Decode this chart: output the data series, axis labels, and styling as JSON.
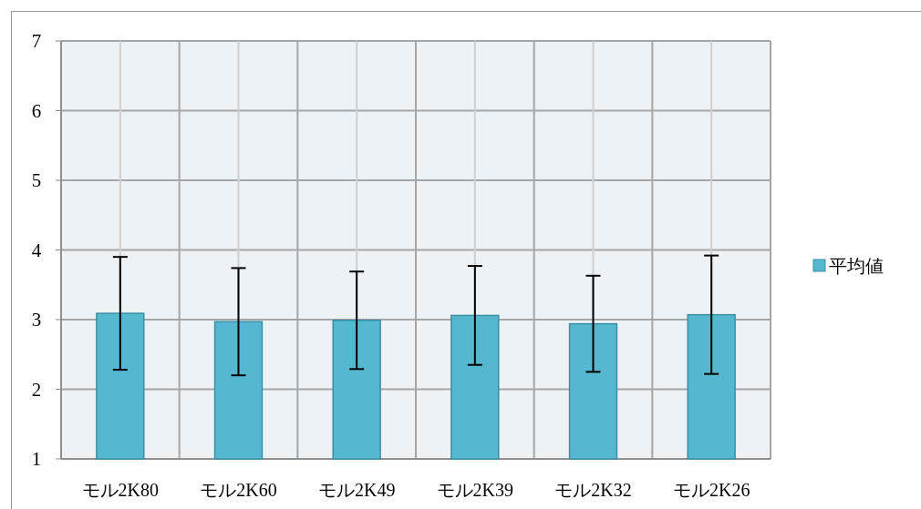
{
  "chart_data": {
    "type": "bar",
    "categories": [
      "モル2K80",
      "モル2K60",
      "モル2K49",
      "モル2K39",
      "モル2K32",
      "モル2K26"
    ],
    "series": [
      {
        "name": "平均値",
        "color": "#56b8d0",
        "values": [
          3.09,
          2.97,
          2.99,
          3.06,
          2.94,
          3.07
        ],
        "errors": [
          0.81,
          0.77,
          0.7,
          0.71,
          0.69,
          0.85
        ]
      }
    ],
    "ylim": [
      1,
      7
    ],
    "yticks": [
      1,
      2,
      3,
      4,
      5,
      6,
      7
    ],
    "grid": true,
    "legend": "right"
  }
}
